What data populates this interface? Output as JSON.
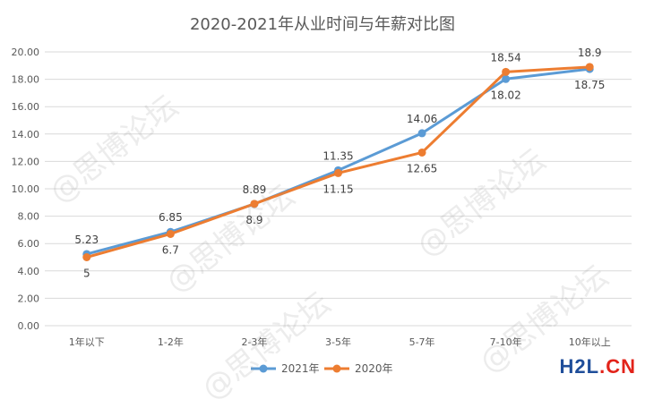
{
  "chart_data": {
    "type": "line",
    "title": "2020-2021年从业时间与年薪对比图",
    "xlabel": "",
    "ylabel": "",
    "categories": [
      "1年以下",
      "1-2年",
      "2-3年",
      "3-5年",
      "5-7年",
      "7-10年",
      "10年以上"
    ],
    "ylim": [
      0,
      20
    ],
    "yticks": [
      "0.00",
      "2.00",
      "4.00",
      "6.00",
      "8.00",
      "10.00",
      "12.00",
      "14.00",
      "16.00",
      "18.00",
      "20.00"
    ],
    "grid": true,
    "legend_position": "bottom",
    "series": [
      {
        "name": "2021年",
        "color": "#5b9bd5",
        "values": [
          5.23,
          6.85,
          8.89,
          11.35,
          14.06,
          18.02,
          18.75
        ],
        "labels": [
          "5.23",
          "6.85",
          "8.89",
          "11.35",
          "14.06",
          "18.02",
          "18.75"
        ]
      },
      {
        "name": "2020年",
        "color": "#ed7d31",
        "values": [
          5,
          6.7,
          8.9,
          11.15,
          12.65,
          18.54,
          18.9
        ],
        "labels": [
          "5",
          "6.7",
          "8.9",
          "11.15",
          "12.65",
          "18.54",
          "18.9"
        ]
      }
    ]
  },
  "watermark_text": "@思博论坛",
  "brand": {
    "main": "H2L",
    "accent": ".CN"
  }
}
